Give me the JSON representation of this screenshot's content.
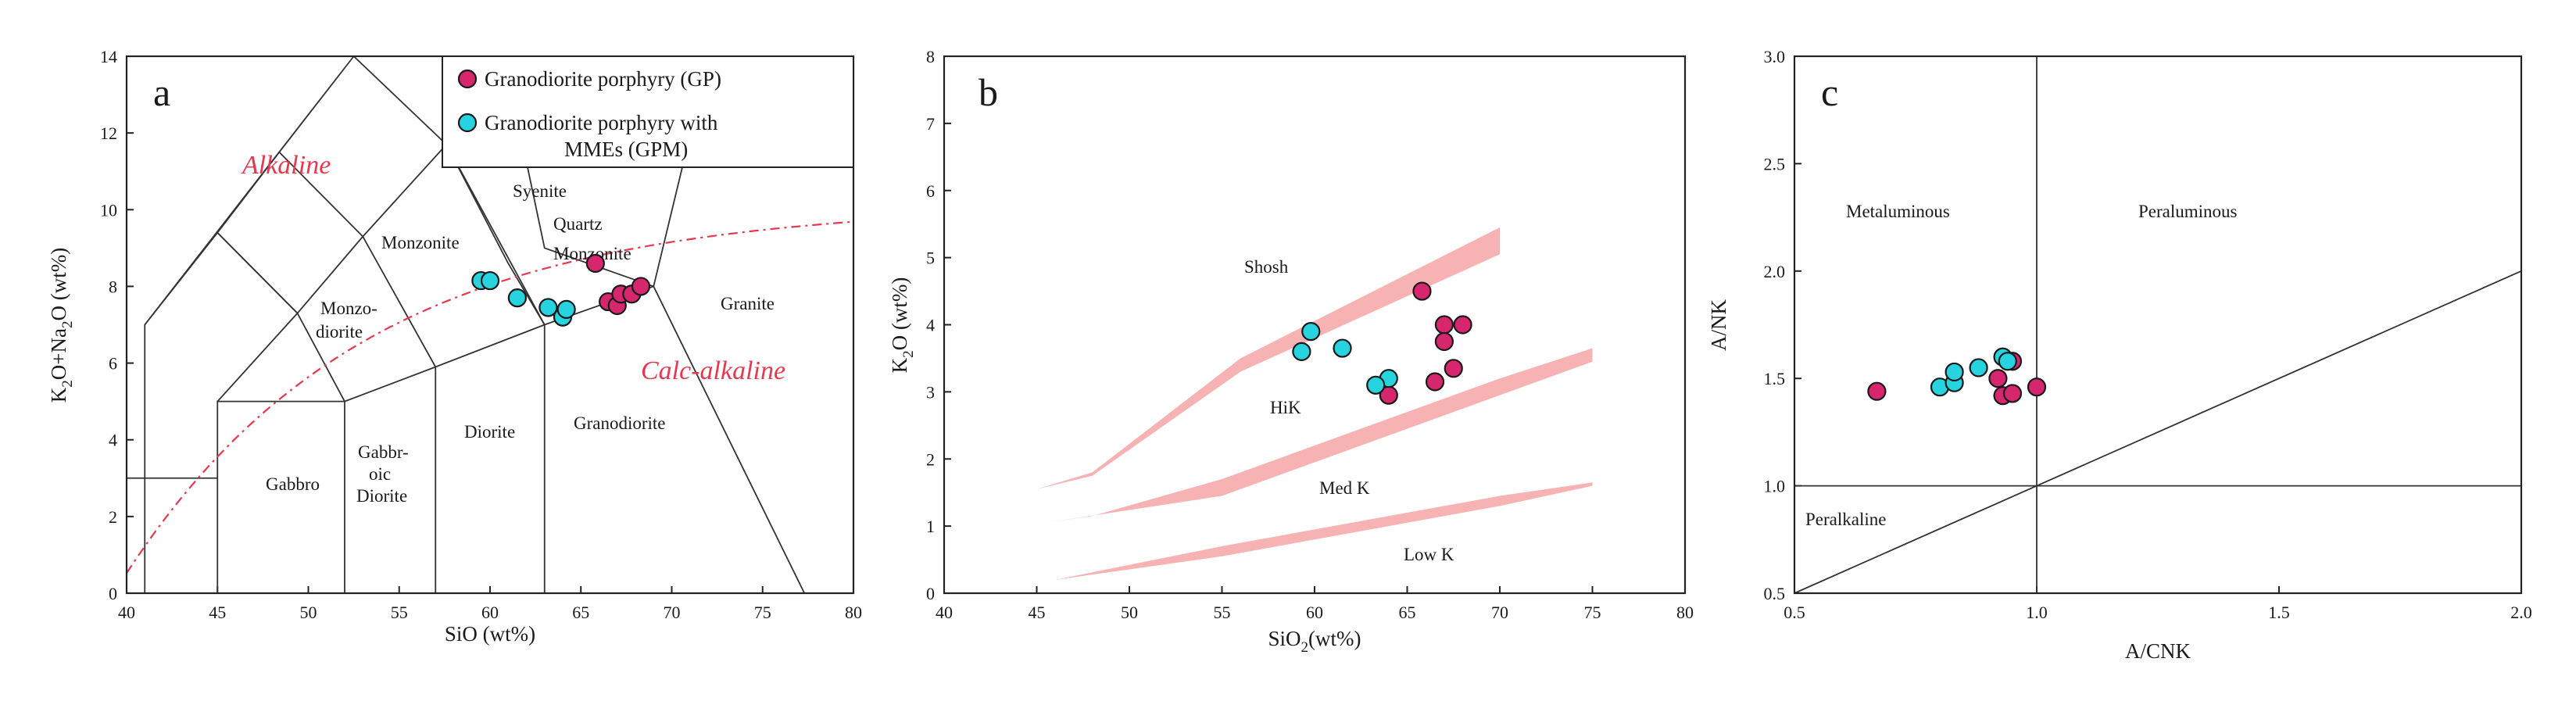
{
  "chart_data": [
    {
      "panel": "a",
      "type": "scatter",
      "xlabel": "SiO (wt%)",
      "ylabel_parts": [
        "K",
        "2",
        "O+Na",
        "2",
        "O (wt%)"
      ],
      "xlim": [
        40,
        80
      ],
      "ylim": [
        0,
        14
      ],
      "xticks": [
        40,
        45,
        50,
        55,
        60,
        65,
        70,
        75,
        80
      ],
      "yticks": [
        0,
        2,
        4,
        6,
        8,
        10,
        12,
        14
      ],
      "series_labels": [
        "Alkaline",
        "Calc-alkaline"
      ],
      "fields": {
        "gabbro": "Gabbro",
        "gabbroic_diorite": [
          "Gabbr-",
          "oic",
          "Diorite"
        ],
        "diorite": "Diorite",
        "granodiorite": "Granodiorite",
        "granite": "Granite",
        "monzodiorite": [
          "Monzo-",
          "diorite"
        ],
        "monzonite": "Monzonite",
        "quartz_monzonite": [
          "Quartz",
          "Monzonite"
        ],
        "syenite": "Syenite"
      },
      "legend": [
        "Granodiorite porphyry (GP)",
        "Granodiorite porphyry with",
        "MMEs (GPM)"
      ],
      "series": [
        {
          "name": "GP",
          "points": [
            [
              65.8,
              8.6
            ],
            [
              66.5,
              7.6
            ],
            [
              67.0,
              7.5
            ],
            [
              67.2,
              7.8
            ],
            [
              67.8,
              7.8
            ],
            [
              68.3,
              8.0
            ]
          ]
        },
        {
          "name": "GPM",
          "points": [
            [
              59.5,
              8.15
            ],
            [
              60.0,
              8.15
            ],
            [
              61.5,
              7.7
            ],
            [
              63.2,
              7.45
            ],
            [
              64.0,
              7.2
            ],
            [
              64.2,
              7.4
            ]
          ]
        }
      ]
    },
    {
      "panel": "b",
      "type": "scatter",
      "xlabel_parts": [
        "SiO",
        "2",
        "(wt%)"
      ],
      "ylabel_parts": [
        "K",
        "2",
        "O (wt%)"
      ],
      "xlim": [
        40,
        80
      ],
      "ylim": [
        0,
        8
      ],
      "xticks": [
        40,
        45,
        50,
        55,
        60,
        65,
        70,
        75,
        80
      ],
      "yticks": [
        0,
        1,
        2,
        3,
        4,
        5,
        6,
        7,
        8
      ],
      "fields": {
        "shosh": "Shosh",
        "hik": "HiK",
        "medk": "Med K",
        "lowk": "Low K"
      },
      "series": [
        {
          "name": "GP",
          "points": [
            [
              65.8,
              4.5
            ],
            [
              67.0,
              4.0
            ],
            [
              68.0,
              4.0
            ],
            [
              67.0,
              3.75
            ],
            [
              67.5,
              3.35
            ],
            [
              66.5,
              3.15
            ],
            [
              64.0,
              2.95
            ]
          ]
        },
        {
          "name": "GPM",
          "points": [
            [
              59.8,
              3.9
            ],
            [
              59.3,
              3.6
            ],
            [
              61.5,
              3.65
            ],
            [
              64.0,
              3.2
            ],
            [
              63.3,
              3.1
            ]
          ]
        }
      ]
    },
    {
      "panel": "c",
      "type": "scatter",
      "xlabel": "A/CNK",
      "ylabel": "A/NK",
      "xlim": [
        0.5,
        2.0
      ],
      "ylim": [
        0.5,
        3.0
      ],
      "xticks": [
        "0.5",
        "1.0",
        "1.5",
        "2.0"
      ],
      "yticks": [
        "0.5",
        "1.0",
        "1.5",
        "2.0",
        "2.5",
        "3.0"
      ],
      "fields": {
        "metaluminous": "Metaluminous",
        "peraluminous": "Peraluminous",
        "peralkaline": "Peralkaline"
      },
      "series": [
        {
          "name": "GP",
          "points": [
            [
              0.67,
              1.44
            ],
            [
              0.92,
              1.5
            ],
            [
              0.93,
              1.42
            ],
            [
              0.95,
              1.43
            ],
            [
              0.95,
              1.58
            ],
            [
              1.0,
              1.46
            ]
          ]
        },
        {
          "name": "GPM",
          "points": [
            [
              0.8,
              1.46
            ],
            [
              0.83,
              1.48
            ],
            [
              0.83,
              1.53
            ],
            [
              0.88,
              1.55
            ],
            [
              0.93,
              1.6
            ],
            [
              0.94,
              1.58
            ]
          ]
        }
      ]
    }
  ]
}
